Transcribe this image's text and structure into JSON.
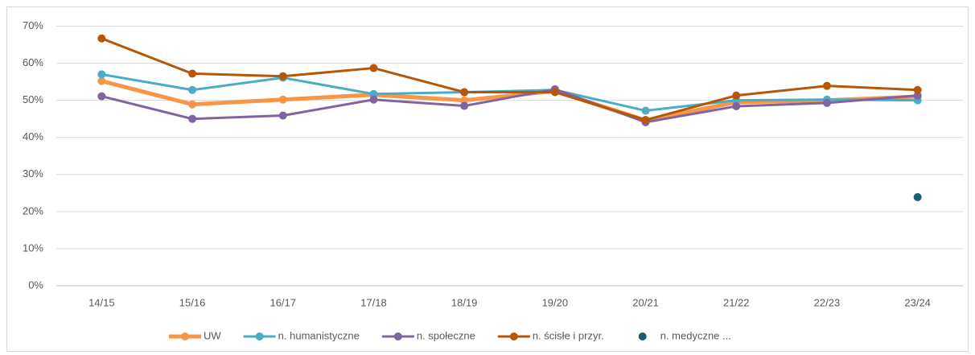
{
  "chart_data": {
    "type": "line",
    "categories": [
      "14/15",
      "15/16",
      "16/17",
      "17/18",
      "18/19",
      "19/20",
      "20/21",
      "21/22",
      "22/23",
      "23/24"
    ],
    "series": [
      {
        "name": "UW",
        "color": "#f79646",
        "values": [
          55.2,
          48.9,
          50.2,
          51.5,
          50.0,
          52.5,
          44.6,
          49.5,
          50.0,
          51.0
        ]
      },
      {
        "name": "n. humanistyczne",
        "color": "#4bacc6",
        "values": [
          57.0,
          52.8,
          56.1,
          51.7,
          52.2,
          52.8,
          47.2,
          50.0,
          50.2,
          50.0
        ]
      },
      {
        "name": "n. społeczne",
        "color": "#8064a2",
        "values": [
          51.1,
          45.0,
          45.9,
          50.2,
          48.5,
          53.0,
          44.1,
          48.4,
          49.3,
          51.3
        ]
      },
      {
        "name": "n. ścisłe i przyr.",
        "color": "#b65708",
        "values": [
          66.7,
          57.2,
          56.5,
          58.7,
          52.2,
          52.2,
          44.7,
          51.3,
          53.9,
          52.8
        ]
      },
      {
        "name": "n. medyczne ...",
        "color": "#1f5c70",
        "values": [
          null,
          null,
          null,
          null,
          null,
          null,
          null,
          null,
          null,
          23.9
        ]
      }
    ],
    "ylim": [
      0,
      70
    ],
    "yticks": [
      {
        "value": 0,
        "label": "0%"
      },
      {
        "value": 10,
        "label": "10%"
      },
      {
        "value": 20,
        "label": "20%"
      },
      {
        "value": 30,
        "label": "30%"
      },
      {
        "value": 40,
        "label": "40%"
      },
      {
        "value": 50,
        "label": "50%"
      },
      {
        "value": 60,
        "label": "60%"
      },
      {
        "value": 70,
        "label": "70%"
      }
    ],
    "grid": true,
    "legend": "bottom"
  }
}
